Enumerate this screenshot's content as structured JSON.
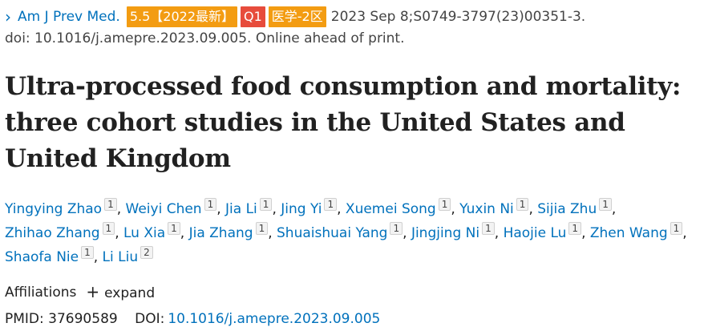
{
  "citation": {
    "chevron": "›",
    "journal": "Am J Prev Med.",
    "badges": {
      "impact": "5.5【2022最新】",
      "quartile": "Q1",
      "zone": "医学-2区"
    },
    "date_and_id": "2023 Sep 8;S0749-3797(23)00351-3.",
    "doi_line": "doi: 10.1016/j.amepre.2023.09.005. Online ahead of print."
  },
  "title": "Ultra-processed food consumption and mortality: three cohort studies in the United States and United Kingdom",
  "authors": [
    {
      "name": "Yingying Zhao",
      "aff": "1"
    },
    {
      "name": "Weiyi Chen",
      "aff": "1"
    },
    {
      "name": "Jia Li",
      "aff": "1"
    },
    {
      "name": "Jing Yi",
      "aff": "1"
    },
    {
      "name": "Xuemei Song",
      "aff": "1"
    },
    {
      "name": "Yuxin Ni",
      "aff": "1"
    },
    {
      "name": "Sijia Zhu",
      "aff": "1"
    },
    {
      "name": "Zhihao Zhang",
      "aff": "1"
    },
    {
      "name": "Lu Xia",
      "aff": "1"
    },
    {
      "name": "Jia Zhang",
      "aff": "1"
    },
    {
      "name": "Shuaishuai Yang",
      "aff": "1"
    },
    {
      "name": "Jingjing Ni",
      "aff": "1"
    },
    {
      "name": "Haojie Lu",
      "aff": "1"
    },
    {
      "name": "Zhen Wang",
      "aff": "1"
    },
    {
      "name": "Shaofa Nie",
      "aff": "1"
    },
    {
      "name": "Li Liu",
      "aff": "2"
    }
  ],
  "affiliations": {
    "label": "Affiliations",
    "expand_icon": "+",
    "expand_label": "expand"
  },
  "identifiers": {
    "pmid_label": "PMID:",
    "pmid": "37690589",
    "doi_label": "DOI:",
    "doi": "10.1016/j.amepre.2023.09.005"
  },
  "colors": {
    "link": "#0071bc",
    "badge_orange": "#f39c12",
    "badge_red": "#e74c3c"
  }
}
